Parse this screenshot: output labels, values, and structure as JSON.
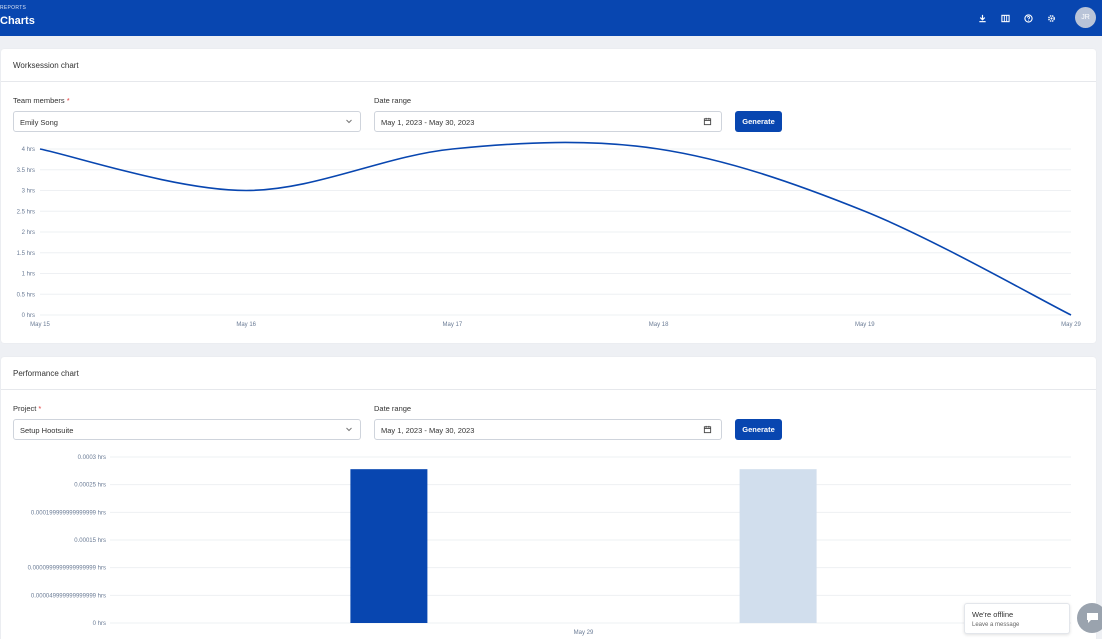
{
  "header": {
    "section": "REPORTS",
    "title": "Charts",
    "avatar_initials": "JR",
    "icons": [
      "download-icon",
      "columns-icon",
      "help-icon",
      "settings-icon"
    ]
  },
  "worksession": {
    "title": "Worksession chart",
    "member_label": "Team members",
    "member_value": "Emily Song",
    "date_label": "Date range",
    "date_value": "May 1, 2023 - May 30, 2023",
    "generate_label": "Generate"
  },
  "performance": {
    "title": "Performance chart",
    "project_label": "Project",
    "project_value": "Setup Hootsuite",
    "date_label": "Date range",
    "date_value": "May 1, 2023 - May 30, 2023",
    "generate_label": "Generate"
  },
  "chat": {
    "status": "We're offline",
    "prompt": "Leave a message"
  },
  "colors": {
    "brand": "#0846b0",
    "bar_light": "#d1deed"
  },
  "chart_data": [
    {
      "type": "line",
      "x": [
        "May 15",
        "May 16",
        "May 17",
        "May 18",
        "May 19",
        "May 29"
      ],
      "series": [
        {
          "values": [
            4,
            3,
            4,
            4,
            2.5,
            0
          ]
        }
      ],
      "y_ticks": [
        "0 hrs",
        "0.5 hrs",
        "1 hrs",
        "1.5 hrs",
        "2 hrs",
        "2.5 hrs",
        "3 hrs",
        "3.5 hrs",
        "4 hrs"
      ],
      "ylim": [
        0,
        4
      ],
      "grid": true
    },
    {
      "type": "bar",
      "categories": [
        "May 29"
      ],
      "series": [
        {
          "values": [
            0.000278
          ],
          "color": "#0846b0"
        },
        {
          "values": [
            0.000278
          ],
          "color": "#d1deed"
        }
      ],
      "y_ticks": [
        "0 hrs",
        "0.000049999999999999 hrs",
        "0.0000999999999999999 hrs",
        "0.00015 hrs",
        "0.000199999999999999 hrs",
        "0.00025 hrs",
        "0.0003 hrs"
      ],
      "ylim": [
        0,
        0.0003
      ],
      "grid": true
    }
  ]
}
